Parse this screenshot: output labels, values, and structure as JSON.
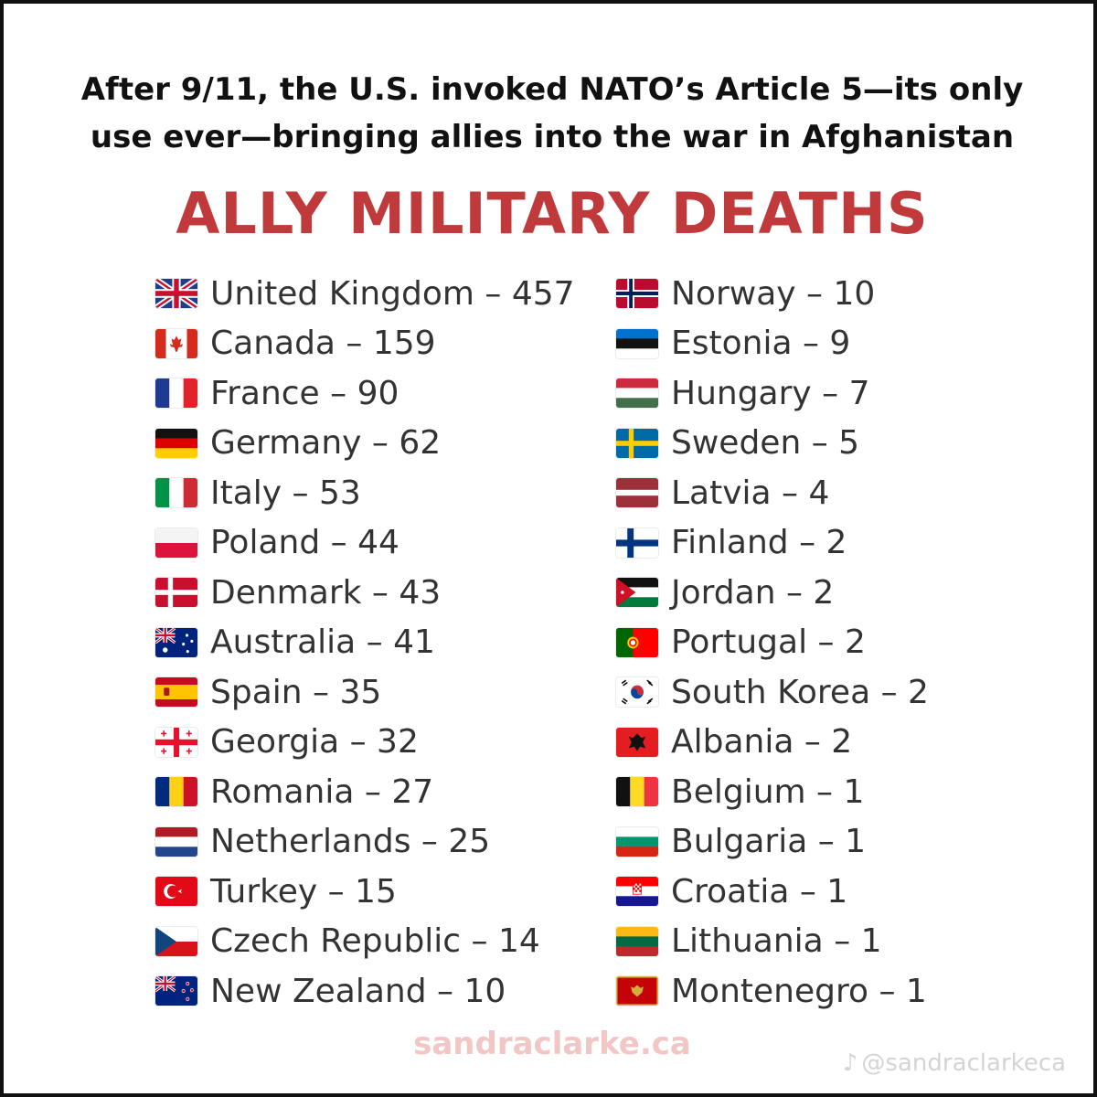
{
  "subtitle_lines": [
    "After 9/11, the U.S. invoked NATO’s Article 5—its only",
    "use ever—bringing allies into the war in Afghanistan"
  ],
  "headline": "ALLY MILITARY DEATHS",
  "colors": {
    "headline": "#c0393b",
    "text": "#333333",
    "watermark": "#f1c6c4"
  },
  "left_column": [
    {
      "label": "United Kingdom – 457",
      "flag": "uk-flag-icon"
    },
    {
      "label": "Canada – 159",
      "flag": "canada-flag-icon"
    },
    {
      "label": "France – 90",
      "flag": "france-flag-icon"
    },
    {
      "label": "Germany – 62",
      "flag": "germany-flag-icon"
    },
    {
      "label": "Italy – 53",
      "flag": "italy-flag-icon"
    },
    {
      "label": "Poland – 44",
      "flag": "poland-flag-icon"
    },
    {
      "label": "Denmark – 43",
      "flag": "denmark-flag-icon"
    },
    {
      "label": "Australia – 41",
      "flag": "australia-flag-icon"
    },
    {
      "label": "Spain – 35",
      "flag": "spain-flag-icon"
    },
    {
      "label": "Georgia – 32",
      "flag": "georgia-flag-icon"
    },
    {
      "label": "Romania – 27",
      "flag": "romania-flag-icon"
    },
    {
      "label": "Netherlands – 25",
      "flag": "netherlands-flag-icon"
    },
    {
      "label": "Turkey – 15",
      "flag": "turkey-flag-icon"
    },
    {
      "label": "Czech Republic – 14",
      "flag": "czech-flag-icon"
    },
    {
      "label": "New Zealand – 10",
      "flag": "new-zealand-flag-icon"
    }
  ],
  "right_column": [
    {
      "label": "Norway – 10",
      "flag": "norway-flag-icon"
    },
    {
      "label": "Estonia – 9",
      "flag": "estonia-flag-icon"
    },
    {
      "label": "Hungary – 7",
      "flag": "hungary-flag-icon"
    },
    {
      "label": "Sweden – 5",
      "flag": "sweden-flag-icon"
    },
    {
      "label": "Latvia – 4",
      "flag": "latvia-flag-icon"
    },
    {
      "label": "Finland – 2",
      "flag": "finland-flag-icon"
    },
    {
      "label": "Jordan – 2",
      "flag": "jordan-flag-icon"
    },
    {
      "label": "Portugal – 2",
      "flag": "portugal-flag-icon"
    },
    {
      "label": "South Korea – 2",
      "flag": "south-korea-flag-icon"
    },
    {
      "label": "Albania – 2",
      "flag": "albania-flag-icon"
    },
    {
      "label": "Belgium – 1",
      "flag": "belgium-flag-icon"
    },
    {
      "label": "Bulgaria – 1",
      "flag": "bulgaria-flag-icon"
    },
    {
      "label": "Croatia – 1",
      "flag": "croatia-flag-icon"
    },
    {
      "label": "Lithuania – 1",
      "flag": "lithuania-flag-icon"
    },
    {
      "label": "Montenegro – 1",
      "flag": "montenegro-flag-icon"
    }
  ],
  "watermark": "sandraclarke.ca",
  "handle": "@sandraclarkeca"
}
